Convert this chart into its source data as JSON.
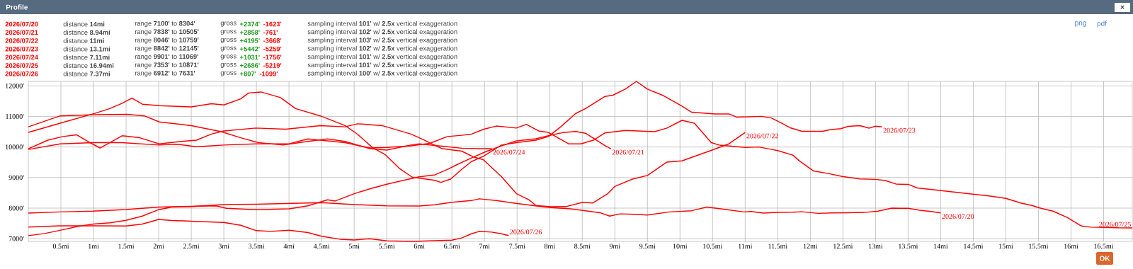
{
  "chart_data": {
    "type": "line",
    "title": "Profile",
    "xlim": [
      0,
      16.94
    ],
    "ylim": [
      6912,
      12145
    ],
    "grid": true,
    "xticks": [
      {
        "value": 0.5,
        "label": "0.5mi"
      },
      {
        "value": 1,
        "label": "1mi"
      },
      {
        "value": 1.5,
        "label": "1.5mi"
      },
      {
        "value": 2,
        "label": "2mi"
      },
      {
        "value": 2.5,
        "label": "2.5mi"
      },
      {
        "value": 3,
        "label": "3mi"
      },
      {
        "value": 3.5,
        "label": "3.5mi"
      },
      {
        "value": 4,
        "label": "4mi"
      },
      {
        "value": 4.5,
        "label": "4.5mi"
      },
      {
        "value": 5,
        "label": "5mi"
      },
      {
        "value": 5.5,
        "label": "5.5mi"
      },
      {
        "value": 6,
        "label": "6mi"
      },
      {
        "value": 6.5,
        "label": "6.5mi"
      },
      {
        "value": 7,
        "label": "7mi"
      },
      {
        "value": 7.5,
        "label": "7.5mi"
      },
      {
        "value": 8,
        "label": "8mi"
      },
      {
        "value": 8.5,
        "label": "8.5mi"
      },
      {
        "value": 9,
        "label": "9mi"
      },
      {
        "value": 9.5,
        "label": "9.5mi"
      },
      {
        "value": 10,
        "label": "10mi"
      },
      {
        "value": 10.5,
        "label": "10.5mi"
      },
      {
        "value": 11,
        "label": "11mi"
      },
      {
        "value": 11.5,
        "label": "11.5mi"
      },
      {
        "value": 12,
        "label": "12mi"
      },
      {
        "value": 12.5,
        "label": "12.5mi"
      },
      {
        "value": 13,
        "label": "13mi"
      },
      {
        "value": 13.5,
        "label": "13.5mi"
      },
      {
        "value": 14,
        "label": "14mi"
      },
      {
        "value": 14.5,
        "label": "14.5mi"
      },
      {
        "value": 15,
        "label": "15mi"
      },
      {
        "value": 15.5,
        "label": "15.5mi"
      },
      {
        "value": 16,
        "label": "16mi"
      },
      {
        "value": 16.5,
        "label": "16.5mi"
      }
    ],
    "yticks": [
      {
        "value": 7000,
        "label": "7000'"
      },
      {
        "value": 8000,
        "label": "8000'"
      },
      {
        "value": 9000,
        "label": "9000'"
      },
      {
        "value": 10000,
        "label": "10000'"
      },
      {
        "value": 11000,
        "label": "11000'"
      },
      {
        "value": 12000,
        "label": "12000'"
      }
    ],
    "series": [
      {
        "name": "2026/07/20",
        "color": "#ff0000",
        "x": [
          0,
          0.25,
          0.5,
          0.75,
          1,
          1.25,
          1.5,
          1.75,
          2,
          2.2,
          2.5,
          3,
          3.5,
          4,
          4.5,
          5,
          5.5,
          6,
          6.24,
          6.5,
          6.8,
          6.92,
          7.18,
          7.5,
          7.8,
          8.02,
          8.32,
          8.55,
          8.77,
          8.92,
          9.08,
          9.31,
          9.5,
          9.84,
          10.18,
          10.41,
          10.71,
          10.98,
          11.09,
          11.28,
          11.5,
          11.73,
          11.87,
          12.12,
          12.33,
          12.58,
          12.83,
          13.04,
          13.25,
          13.5,
          13.68,
          13.85,
          14
        ],
        "values": [
          7100,
          7170,
          7280,
          7400,
          7480,
          7520,
          7600,
          7740,
          7950,
          8035,
          8050,
          8115,
          8130,
          8154,
          8178,
          8115,
          8075,
          8071,
          8111,
          8191,
          8247,
          8304,
          8247,
          8151,
          8071,
          8016,
          7976,
          7912,
          7852,
          7740,
          7812,
          7796,
          7773,
          7876,
          7916,
          8035,
          7956,
          7876,
          7892,
          7836,
          7859,
          7867,
          7882,
          7830,
          7845,
          7852,
          7859,
          7904,
          8000,
          7993,
          7933,
          7889,
          7844
        ]
      },
      {
        "name": "2026/07/21",
        "color": "#ff0000",
        "x": [
          0,
          0.49,
          0.99,
          1.5,
          2,
          2.5,
          2.88,
          3.04,
          3.49,
          4,
          4.29,
          4.59,
          4.71,
          5,
          5.24,
          5.5,
          5.84,
          6,
          6.24,
          6.43,
          6.58,
          6.8,
          7,
          7.25,
          7.49,
          7.79,
          8,
          8.2,
          8.4,
          8.55,
          8.7,
          8.85,
          8.94
        ],
        "values": [
          7838,
          7876,
          7900,
          7956,
          8035,
          8059,
          8075,
          7995,
          7948,
          7979,
          8075,
          8274,
          8234,
          8473,
          8632,
          8780,
          8950,
          9026,
          9090,
          9265,
          9424,
          9640,
          9830,
          10030,
          10200,
          10270,
          10380,
          10470,
          10505,
          10450,
          10250,
          10040,
          9944
        ]
      },
      {
        "name": "2026/07/22",
        "color": "#ff0000",
        "x": [
          0,
          0.3,
          0.53,
          0.74,
          0.91,
          1.1,
          1.44,
          1.71,
          2.01,
          2.35,
          2.58,
          2.81,
          3,
          3.49,
          3.95,
          4.48,
          4.86,
          5.05,
          5.43,
          5.87,
          6,
          6.35,
          6.65,
          6.84,
          6.98,
          7.26,
          7.49,
          7.68,
          7.79,
          8.02,
          8.25,
          8.51,
          8.66,
          8.89,
          9,
          9.27,
          9.5,
          9.8,
          10.03,
          10.5,
          10.75,
          11
        ],
        "values": [
          9944,
          10223,
          10342,
          10398,
          10183,
          9968,
          10366,
          10302,
          10103,
          10183,
          10223,
          10422,
          10525,
          10620,
          10581,
          10700,
          10660,
          10759,
          10700,
          10422,
          10302,
          9944,
          9865,
          9666,
          9586,
          9030,
          8473,
          8274,
          8088,
          8046,
          8050,
          8191,
          8167,
          8470,
          8710,
          8950,
          9069,
          9507,
          9547,
          9905,
          10103,
          10477
        ]
      },
      {
        "name": "2026/07/23",
        "color": "#ff0000",
        "x": [
          0,
          0.49,
          1.02,
          1.25,
          1.44,
          1.59,
          1.75,
          2.01,
          2.5,
          2.81,
          3,
          3.26,
          3.38,
          3.57,
          3.87,
          4.1,
          4.48,
          4.86,
          5.05,
          5.28,
          5.48,
          5.69,
          5.89,
          6.24,
          6.33,
          6.48,
          6.65,
          6.8,
          6.99,
          7.26,
          7.49,
          7.79,
          7.98,
          8.17,
          8.4,
          8.55,
          8.85,
          8.97,
          9.16,
          9.33,
          9.5,
          9.73,
          10.03,
          10.18,
          10.53,
          10.75,
          10.87,
          11.25,
          11.4,
          11.5,
          11.7,
          11.87,
          12.19,
          12.3,
          12.47,
          12.58,
          12.76,
          12.9,
          13,
          13.1
        ],
        "values": [
          10477,
          10780,
          11100,
          11257,
          11430,
          11600,
          11400,
          11350,
          11310,
          11416,
          11376,
          11575,
          11766,
          11800,
          11615,
          11257,
          11018,
          10700,
          10420,
          9984,
          9745,
          9308,
          9013,
          8910,
          8842,
          8950,
          9268,
          9523,
          9706,
          10064,
          10143,
          10223,
          10342,
          10660,
          11098,
          11257,
          11655,
          11694,
          11893,
          12145,
          11893,
          11694,
          11336,
          11137,
          11082,
          11082,
          10978,
          11002,
          10950,
          10844,
          10622,
          10511,
          10511,
          10563,
          10600,
          10674,
          10696,
          10615,
          10681,
          10659
        ]
      },
      {
        "name": "2026/07/24",
        "color": "#ff0000",
        "x": [
          0,
          0.49,
          1.02,
          1.52,
          1.78,
          2.01,
          2.5,
          2.96,
          3.26,
          3.53,
          3.91,
          4.29,
          4.59,
          4.86,
          5.24,
          5.5,
          5.87,
          6,
          6.35,
          6.65,
          6.92,
          7.11
        ],
        "values": [
          10660,
          11018,
          11058,
          11069,
          11018,
          10820,
          10700,
          10500,
          10302,
          10143,
          10064,
          10183,
          10262,
          10183,
          9944,
          9901,
          10064,
          10103,
          10024,
          9960,
          9944,
          9944
        ]
      },
      {
        "name": "2026/07/25",
        "color": "#ff0000",
        "x": [
          0,
          0.49,
          0.99,
          1.44,
          2.01,
          2.28,
          2.58,
          3,
          3.49,
          4,
          4.29,
          4.48,
          4.86,
          5.24,
          5.5,
          5.87,
          6.16,
          6.43,
          6.65,
          6.8,
          6.99,
          7.18,
          7.49,
          7.64,
          7.83,
          7.98,
          8.29,
          8.48,
          8.67,
          8.85,
          9.16,
          9.61,
          9.8,
          10.03,
          10.22,
          10.48,
          10.6,
          11,
          11.21,
          11.41,
          11.5,
          11.73,
          11.83,
          12.05,
          12.29,
          12.5,
          12.76,
          13,
          13.15,
          13.32,
          13.5,
          13.64,
          13.96,
          14.2,
          14.49,
          14.74,
          15,
          15.24,
          15.41,
          15.52,
          15.73,
          15.94,
          16.16,
          16.3,
          16.51,
          16.73,
          16.94
        ],
        "values": [
          9920,
          10103,
          10143,
          10143,
          10064,
          10088,
          10008,
          10064,
          10103,
          10103,
          10262,
          10223,
          10143,
          9968,
          9984,
          10040,
          10120,
          10342,
          10382,
          10422,
          10581,
          10684,
          10620,
          10740,
          10525,
          10477,
          10103,
          10103,
          10223,
          10461,
          10541,
          10501,
          10620,
          10871,
          10780,
          10143,
          10064,
          9984,
          10000,
          9919,
          9881,
          9733,
          9548,
          9215,
          9126,
          9030,
          8956,
          8941,
          8904,
          8785,
          8778,
          8659,
          8585,
          8526,
          8459,
          8400,
          8319,
          8163,
          8081,
          8007,
          7896,
          7696,
          7415,
          7378,
          7370,
          7356,
          7353
        ]
      },
      {
        "name": "2026/07/26",
        "color": "#ff0000",
        "x": [
          0,
          0.49,
          1,
          1.5,
          1.75,
          2,
          2.2,
          2.5,
          3,
          3.26,
          3.5,
          3.72,
          4,
          4.29,
          4.5,
          4.78,
          5,
          5.24,
          5.5,
          5.9,
          6.5,
          6.65,
          6.8,
          6.92,
          7.11,
          7.26,
          7.37
        ],
        "values": [
          7382,
          7422,
          7422,
          7414,
          7478,
          7631,
          7597,
          7573,
          7533,
          7438,
          7263,
          7239,
          7279,
          7200,
          7080,
          6984,
          6960,
          7000,
          6930,
          6912,
          6953,
          7025,
          7160,
          7240,
          7216,
          7160,
          7104
        ]
      }
    ],
    "annotations": [
      "distance **14mi**",
      "range **7100'** to **8304'**",
      "gross",
      "**+2374'**",
      "**-1623'**",
      "sampling interval **101'** w/ **2.5x** vertical exaggeration",
      "distance **8.94mi**",
      "range **7838'** to **10505'**",
      "gross",
      "**+2858'**",
      "**-761'**",
      "sampling interval **102'** w/ **2.5x** vertical exaggeration",
      "distance **11mi**",
      "range **8046'** to **10759'**",
      "gross",
      "**+4195'**",
      "**-3668'**",
      "sampling interval **103'** w/ **2.5x** vertical exaggeration",
      "distance **13.1mi**",
      "range **8842'** to **12145'**",
      "gross",
      "**+5442'**",
      "**-5259'**",
      "sampling interval **102'** w/ **2.5x** vertical exaggeration",
      "distance **7.11mi**",
      "range **9901'** to **11069'**",
      "gross",
      "**+1031'**",
      "**-1756'**",
      "sampling interval **101'** w/ **2.5x** vertical exaggeration",
      "distance **16.94mi**",
      "range **7353'** to **10871'**",
      "gross",
      "**+2686'**",
      "**-5219'**",
      "sampling interval **101'** w/ **2.5x** vertical exaggeration",
      "distance **7.37mi**",
      "range **6912'** to **7631'**",
      "gross",
      "**+807'**",
      "**-1099'**",
      "sampling interval **100'** w/ **2.5x** vertical exaggeration",
      "png",
      "pdf",
      "×",
      "OK"
    ]
  }
}
